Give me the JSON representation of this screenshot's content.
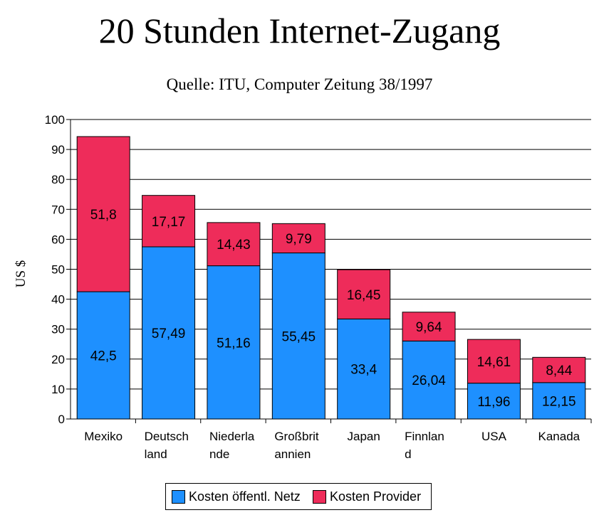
{
  "chart_data": {
    "type": "bar",
    "stacked": true,
    "title": "20 Stunden Internet-Zugang",
    "subtitle": "Quelle: ITU, Computer Zeitung 38/1997",
    "xlabel": "",
    "ylabel": "US $",
    "ylim": [
      0,
      100
    ],
    "yticks": [
      "0",
      "10",
      "20",
      "30",
      "40",
      "50",
      "60",
      "70",
      "80",
      "90",
      "100"
    ],
    "grid": true,
    "legend_position": "bottom",
    "categories": [
      [
        "Mexiko"
      ],
      [
        "Deutsch",
        "land"
      ],
      [
        "Niederla",
        "nde"
      ],
      [
        "Großbrit",
        "annien"
      ],
      [
        "Japan"
      ],
      [
        "Finnlan",
        "d"
      ],
      [
        "USA"
      ],
      [
        "Kanada"
      ]
    ],
    "series": [
      {
        "name": "Kosten öffentl. Netz",
        "color": "#1e90ff",
        "values": [
          42.5,
          57.49,
          51.16,
          55.45,
          33.4,
          26.04,
          11.96,
          12.15
        ],
        "labels": [
          "42,5",
          "57,49",
          "51,16",
          "55,45",
          "33,4",
          "26,04",
          "11,96",
          "12,15"
        ]
      },
      {
        "name": "Kosten Provider",
        "color": "#ee2c5a",
        "values": [
          51.8,
          17.17,
          14.43,
          9.79,
          16.45,
          9.64,
          14.61,
          8.44
        ],
        "labels": [
          "51,8",
          "17,17",
          "14,43",
          "9,79",
          "16,45",
          "9,64",
          "14,61",
          "8,44"
        ]
      }
    ]
  }
}
